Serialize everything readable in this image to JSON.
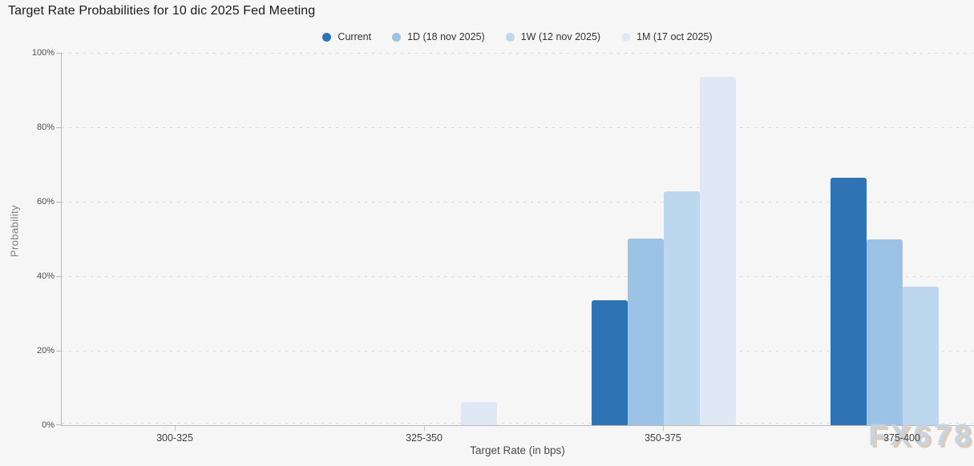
{
  "title": "Target Rate Probabilities for 10 dic 2025 Fed Meeting",
  "watermark": "FX678",
  "chart_data": {
    "type": "bar",
    "title": "Target Rate Probabilities for 10 dic 2025 Fed Meeting",
    "categories": [
      "300-325",
      "325-350",
      "350-375",
      "375-400"
    ],
    "series": [
      {
        "name": "Current",
        "color": "#2e74b5",
        "values": [
          0,
          0,
          33.5,
          66.5
        ]
      },
      {
        "name": "1D (18 nov 2025)",
        "color": "#9cc2e5",
        "values": [
          0,
          0,
          50.2,
          49.8
        ]
      },
      {
        "name": "1W (12 nov 2025)",
        "color": "#bdd7ee",
        "values": [
          0,
          0,
          62.8,
          37.1
        ]
      },
      {
        "name": "1M (17 oct 2025)",
        "color": "#dee9f5",
        "values": [
          0,
          6.2,
          93.6,
          0
        ]
      }
    ],
    "xlabel": "Target Rate (in bps)",
    "ylabel": "Probability",
    "ylim": [
      0,
      100
    ],
    "yticks": [
      "0%",
      "20%",
      "40%",
      "60%",
      "80%",
      "100%"
    ],
    "grid": "horizontal-dotted",
    "legend_position": "top-center"
  }
}
